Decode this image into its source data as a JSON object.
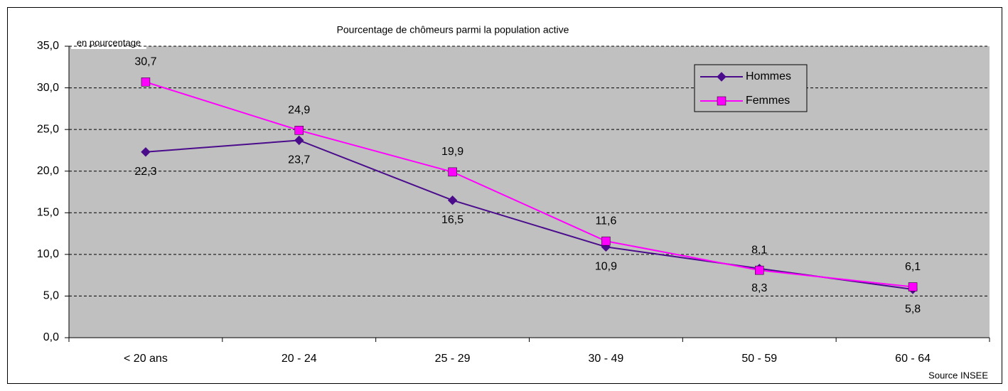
{
  "chart_data": {
    "type": "line",
    "title": "Pourcentage de chômeurs parmi la population active",
    "y_label": "en pourcentage",
    "source": "Source INSEE",
    "categories": [
      "< 20 ans",
      "20 - 24",
      "25 - 29",
      "30 - 49",
      "50 - 59",
      "60 - 64"
    ],
    "series": [
      {
        "name": "Hommes",
        "color": "#4b0c8c",
        "marker": "diamond",
        "label_position": "below",
        "values": [
          22.3,
          23.7,
          16.5,
          10.9,
          8.3,
          5.8
        ],
        "value_labels": [
          "22,3",
          "23,7",
          "16,5",
          "10,9",
          "8,3",
          "5,8"
        ]
      },
      {
        "name": "Femmes",
        "color": "#ff00ff",
        "marker": "square",
        "label_position": "above",
        "values": [
          30.7,
          24.9,
          19.9,
          11.6,
          8.1,
          6.1
        ],
        "value_labels": [
          "30,7",
          "24,9",
          "19,9",
          "11,6",
          "8,1",
          "6,1"
        ]
      }
    ],
    "ylim": [
      0,
      35
    ],
    "yticks": [
      {
        "value": 0,
        "label": "0,0"
      },
      {
        "value": 5,
        "label": "5,0"
      },
      {
        "value": 10,
        "label": "10,0"
      },
      {
        "value": 15,
        "label": "15,0"
      },
      {
        "value": 20,
        "label": "20,0"
      },
      {
        "value": 25,
        "label": "25,0"
      },
      {
        "value": 30,
        "label": "30,0"
      },
      {
        "value": 35,
        "label": "35,0"
      }
    ],
    "grid": true,
    "legend": "top-right"
  }
}
